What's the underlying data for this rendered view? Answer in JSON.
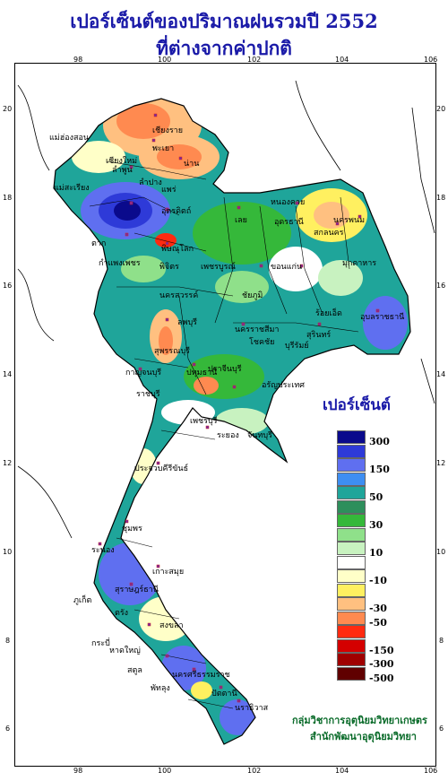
{
  "title_line1": "เปอร์เซ็นต์ของปริมาณฝนรวมปี  2552",
  "title_line2": "ที่ต่างจากค่าปกติ",
  "axes": {
    "x_ticks": [
      "98",
      "100",
      "102",
      "104",
      "106"
    ],
    "y_ticks": [
      "20",
      "18",
      "16",
      "14",
      "12",
      "10",
      "8",
      "6"
    ]
  },
  "legend": {
    "title": "เปอร์เซ็นต์",
    "items": [
      {
        "color": "#0a0a8c",
        "label": "300"
      },
      {
        "color": "#2e3ad8",
        "label": ""
      },
      {
        "color": "#5f6ff0",
        "label": "150"
      },
      {
        "color": "#3e8ef2",
        "label": ""
      },
      {
        "color": "#1fa59a",
        "label": "50"
      },
      {
        "color": "#2e8f5c",
        "label": ""
      },
      {
        "color": "#35b83a",
        "label": "30"
      },
      {
        "color": "#8fe08a",
        "label": ""
      },
      {
        "color": "#c8f2c0",
        "label": "10"
      },
      {
        "color": "#ffffff",
        "label": ""
      },
      {
        "color": "#ffffc8",
        "label": "-10"
      },
      {
        "color": "#fff060",
        "label": ""
      },
      {
        "color": "#ffc080",
        "label": "-30"
      },
      {
        "color": "#ff8a50",
        "label": "-50"
      },
      {
        "color": "#ff2a10",
        "label": ""
      },
      {
        "color": "#d40000",
        "label": "-150"
      },
      {
        "color": "#a00000",
        "label": "-300"
      },
      {
        "color": "#600000",
        "label": "-500"
      }
    ]
  },
  "credit_line1": "กลุ่มวิชาการอุตุนิยมวิทยาเกษตร",
  "credit_line2": "สำนักพัฒนาอุตุนิยมวิทยา",
  "place_labels": [
    "เชียงราย",
    "แม่ฮ่องสอน",
    "พะเยา",
    "เชียงใหม่",
    "น่าน",
    "ลำพูน",
    "ลำปาง",
    "แพร่",
    "แม่สะเรียง",
    "อุตรดิตถ์",
    "ตาก",
    "พิษณุโลก",
    "เลย",
    "หนองคาย",
    "อุดรธานี",
    "สกลนคร",
    "นครพนม",
    "มุกดาหาร",
    "กำแพงเพชร",
    "พิจิตร",
    "เพชรบูรณ์",
    "ขอนแก่น",
    "นครสวรรค์",
    "ชัยภูมิ",
    "ร้อยเอ็ด",
    "อุบลราชธานี",
    "สุรินทร์",
    "นครราชสีมา",
    "โชคชัย",
    "บุรีรัมย์",
    "ลพบุรี",
    "สุพรรณบุรี",
    "กาญจนบุรี",
    "ปทุมธานี",
    "ปราจีนบุรี",
    "ราชบุรี",
    "อรัญประเทศ",
    "เพชรบุรี",
    "ระยอง",
    "จันทบุรี",
    "ประจวบคีรีขันธ์",
    "ชุมพร",
    "ระนอง",
    "เกาะสมุย",
    "สุราษฎร์ธานี",
    "ภูเก็ต",
    "ตรัง",
    "สงขลา",
    "หาดใหญ่",
    "สตูล",
    "ปัตตานี",
    "นราธิวาส",
    "กระบี่",
    "นครศรีธรรมราช",
    "พัทลุง"
  ]
}
